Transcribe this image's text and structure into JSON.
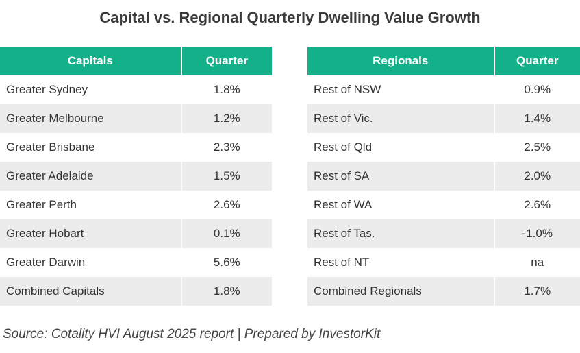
{
  "title": "Capital vs. Regional Quarterly Dwelling Value Growth",
  "tables": [
    {
      "header": [
        "Capitals",
        "Quarter"
      ],
      "rows": [
        [
          "Greater Sydney",
          "1.8%"
        ],
        [
          "Greater Melbourne",
          "1.2%"
        ],
        [
          "Greater Brisbane",
          "2.3%"
        ],
        [
          "Greater Adelaide",
          "1.5%"
        ],
        [
          "Greater Perth",
          "2.6%"
        ],
        [
          "Greater Hobart",
          "0.1%"
        ],
        [
          "Greater Darwin",
          "5.6%"
        ],
        [
          "Combined Capitals",
          "1.8%"
        ]
      ]
    },
    {
      "header": [
        "Regionals",
        "Quarter"
      ],
      "rows": [
        [
          "Rest of NSW",
          "0.9%"
        ],
        [
          "Rest of Vic.",
          "1.4%"
        ],
        [
          "Rest of Qld",
          "2.5%"
        ],
        [
          "Rest of SA",
          "2.0%"
        ],
        [
          "Rest of WA",
          "2.6%"
        ],
        [
          "Rest of Tas.",
          "-1.0%"
        ],
        [
          "Rest of NT",
          "na"
        ],
        [
          "Combined Regionals",
          "1.7%"
        ]
      ]
    }
  ],
  "source": "Source: Cotality HVI August 2025 report | Prepared by InvestorKit"
}
